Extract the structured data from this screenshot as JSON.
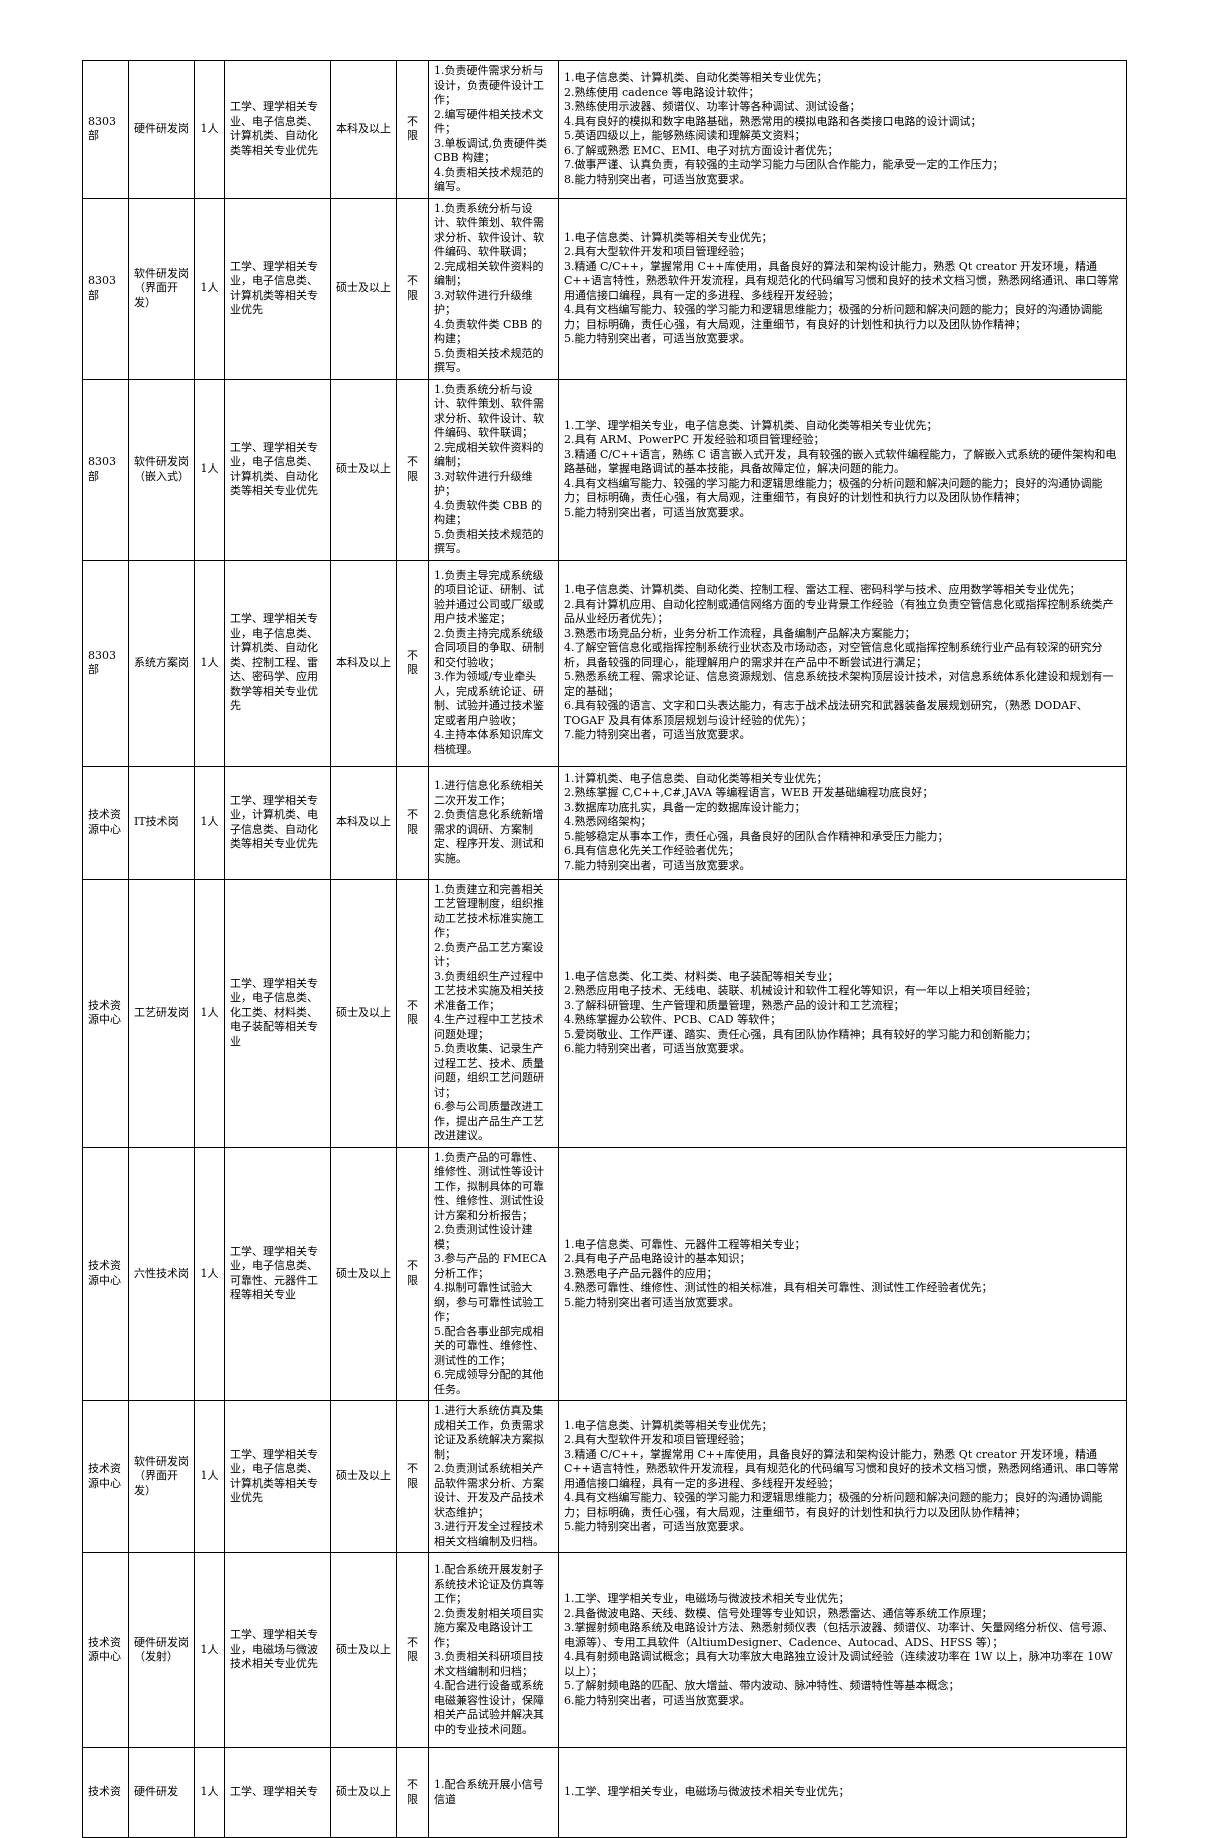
{
  "document": {
    "kind": "recruitment-positions-table",
    "language": "zh-CN",
    "background_color": "#ffffff",
    "border_color": "#000000",
    "text_color": "#000000"
  },
  "table": {
    "rows": [
      {
        "department": "8303部",
        "position": "硬件研发岗",
        "headcount": "1人",
        "majors": "工学、理学相关专业、电子信息类、计算机类、自动化类等相关专业优先",
        "education": "本科及以上",
        "age_limit": "不限",
        "duties": [
          "1.负责硬件需求分析与设计，负责硬件设计工作；",
          "2.编写硬件相关技术文件；",
          "3.单板调试,负责硬件类 CBB 构建；",
          "4.负责相关技术规范的编写。"
        ],
        "requirements": [
          "1.电子信息类、计算机类、自动化类等相关专业优先；",
          "2.熟练使用 cadence 等电路设计软件；",
          "3.熟练使用示波器、频谱仪、功率计等各种调试、测试设备；",
          "4.具有良好的模拟和数字电路基础，熟悉常用的模拟电路和各类接口电路的设计调试；",
          "5.英语四级以上，能够熟练阅读和理解英文资料；",
          "6.了解或熟悉 EMC、EMI、电子对抗方面设计者优先；",
          "7.做事严谨、认真负责，有较强的主动学习能力与团队合作能力，能承受一定的工作压力；",
          "8.能力特别突出者，可适当放宽要求。"
        ]
      },
      {
        "department": "8303部",
        "position": "软件研发岗（界面开发）",
        "headcount": "1人",
        "majors": "工学、理学相关专业，电子信息类、计算机类等相关专业优先",
        "education": "硕士及以上",
        "age_limit": "不限",
        "duties": [
          "1.负责系统分析与设计、软件策划、软件需求分析、软件设计、软件编码、软件联调；",
          "2.完成相关软件资料的编制；",
          "3.对软件进行升级维护；",
          "4.负责软件类 CBB 的构建；",
          "5.负责相关技术规范的撰写。"
        ],
        "requirements": [
          "1.电子信息类、计算机类等相关专业优先；",
          "2.具有大型软件开发和项目管理经验；",
          "3.精通 C/C++，掌握常用 C++库使用，具备良好的算法和架构设计能力，熟悉 Qt creator 开发环境，精通 C++语言特性，熟悉软件开发流程，具有规范化的代码编写习惯和良好的技术文档习惯，熟悉网络通讯、串口等常用通信接口编程，具有一定的多进程、多线程开发经验；",
          "4.具有文档编写能力、较强的学习能力和逻辑思维能力；极强的分析问题和解决问题的能力；良好的沟通协调能力；目标明确，责任心强，有大局观，注重细节，有良好的计划性和执行力以及团队协作精神；",
          "5.能力特别突出者，可适当放宽要求。"
        ]
      },
      {
        "department": "8303部",
        "position": "软件研发岗（嵌入式）",
        "headcount": "1人",
        "majors": "工学、理学相关专业，电子信息类、计算机类、自动化类等相关专业优先",
        "education": "硕士及以上",
        "age_limit": "不限",
        "duties": [
          "1.负责系统分析与设计、软件策划、软件需求分析、软件设计、软件编码、软件联调；",
          "2.完成相关软件资料的编制；",
          "3.对软件进行升级维护；",
          "4.负责软件类 CBB 的构建；",
          "5.负责相关技术规范的撰写。"
        ],
        "requirements": [
          "1.工学、理学相关专业，电子信息类、计算机类、自动化类等相关专业优先；",
          "2.具有 ARM、PowerPC 开发经验和项目管理经验；",
          "3.精通 C/C++语言，熟练 C 语言嵌入式开发，具有较强的嵌入式软件编程能力，了解嵌入式系统的硬件架构和电路基础，掌握电路调试的基本技能，具备故障定位，解决问题的能力。",
          "4.具有文档编写能力、较强的学习能力和逻辑思维能力；极强的分析问题和解决问题的能力；良好的沟通协调能力；目标明确，责任心强，有大局观，注重细节，有良好的计划性和执行力以及团队协作精神；",
          "5.能力特别突出者，可适当放宽要求。"
        ]
      },
      {
        "department": "8303部",
        "position": "系统方案岗",
        "headcount": "1人",
        "majors": "工学、理学相关专业，电子信息类、计算机类、自动化类、控制工程、雷达、密码学、应用数学等相关专业优先",
        "education": "本科及以上",
        "age_limit": "不限",
        "duties": [
          "1.负责主导完成系统级的项目论证、研制、试验并通过公司或厂级或用户技术鉴定；",
          "2.负责主持完成系统级合同项目的争取、研制和交付验收；",
          "3.作为领域/专业牵头人，完成系统论证、研制、试验并通过技术鉴定或者用户验收；",
          "4.主持本体系知识库文档梳理。"
        ],
        "requirements": [
          "1.电子信息类、计算机类、自动化类、控制工程、雷达工程、密码科学与技术、应用数学等相关专业优先；",
          "2.具有计算机应用、自动化控制或通信网络方面的专业背景工作经验（有独立负责空管信息化或指挥控制系统类产品从业经历者优先）；",
          "3.熟悉市场竞品分析，业务分析工作流程，具备编制产品解决方案能力；",
          "4.了解空管信息化或指挥控制系统行业状态及市场动态，对空管信息化或指挥控制系统行业产品有较深的研究分析，具备较强的同理心，能理解用户的需求并在产品中不断尝试进行满足；",
          "5.熟悉系统工程、需求论证、信息资源规划、信息系统技术架构顶层设计技术，对信息系统体系化建设和规划有一定的基础；",
          "6.具有较强的语言、文字和口头表达能力，有志于战术战法研究和武器装备发展规划研究，（熟悉 DODAF、TOGAF 及具有体系顶层规划与设计经验的优先）；",
          "7.能力特别突出者，可适当放宽要求。"
        ]
      },
      {
        "department": "技术资源中心",
        "position": "IT技术岗",
        "headcount": "1人",
        "majors": "工学、理学相关专业，计算机类、电子信息类、自动化类等相关专业优先",
        "education": "本科及以上",
        "age_limit": "不限",
        "duties": [
          "1.进行信息化系统相关二次开发工作；",
          "2.负责信息化系统新增需求的调研、方案制定、程序开发、测试和实施。"
        ],
        "requirements": [
          "1.计算机类、电子信息类、自动化类等相关专业优先；",
          "2.熟练掌握 C,C++,C#,JAVA 等编程语言，WEB 开发基础编程功底良好；",
          "3.数据库功底扎实，具备一定的数据库设计能力；",
          "4.熟悉网络架构；",
          "5.能够稳定从事本工作，责任心强，具备良好的团队合作精神和承受压力能力；",
          "6.具有信息化先关工作经验者优先；",
          "7.能力特别突出者，可适当放宽要求。"
        ]
      },
      {
        "department": "技术资源中心",
        "position": "工艺研发岗",
        "headcount": "1人",
        "majors": "工学、理学相关专业，电子信息类、化工类、材料类、电子装配等相关专业",
        "education": "硕士及以上",
        "age_limit": "不限",
        "duties": [
          "1.负责建立和完善相关工艺管理制度，组织推动工艺技术标准实施工作；",
          "2.负责产品工艺方案设计；",
          "3.负责组织生产过程中工艺技术实施及相关技术准备工作；",
          "4.生产过程中工艺技术问题处理；",
          "5.负责收集、记录生产过程工艺、技术、质量问题，组织工艺问题研讨；",
          "6.参与公司质量改进工作，提出产品生产工艺改进建议。"
        ],
        "requirements": [
          "1.电子信息类、化工类、材料类、电子装配等相关专业；",
          "2.熟悉应用电子技术、无线电、装联、机械设计和软件工程化等知识，有一年以上相关项目经验；",
          "3.了解科研管理、生产管理和质量管理，熟悉产品的设计和工艺流程；",
          "4.熟练掌握办公软件、PCB、CAD 等软件；",
          "5.爱岗敬业、工作严谨、踏实、责任心强，具有团队协作精神；具有较好的学习能力和创新能力；",
          "6.能力特别突出者，可适当放宽要求。"
        ]
      },
      {
        "department": "技术资源中心",
        "position": "六性技术岗",
        "headcount": "1人",
        "majors": "工学、理学相关专业，电子信息类、可靠性、元器件工程等相关专业",
        "education": "硕士及以上",
        "age_limit": "不限",
        "duties": [
          "1.负责产品的可靠性、维修性、测试性等设计工作，拟制具体的可靠性、维修性、测试性设计方案和分析报告；",
          "2.负责测试性设计建模；",
          "3.参与产品的 FMECA 分析工作；",
          "4.拟制可靠性试验大纲，参与可靠性试验工作；",
          "5.配合各事业部完成相关的可靠性、维修性、测试性的工作；",
          "6.完成领导分配的其他任务。"
        ],
        "requirements": [
          "1.电子信息类、可靠性、元器件工程等相关专业；",
          "2.具有电子产品电路设计的基本知识；",
          "3.熟悉电子产品元器件的应用；",
          "4.熟悉可靠性、维修性、测试性的相关标准，具有相关可靠性、测试性工作经验者优先；",
          "5.能力特别突出者可适当放宽要求。"
        ]
      },
      {
        "department": "技术资源中心",
        "position": "软件研发岗（界面开发）",
        "headcount": "1人",
        "majors": "工学、理学相关专业，电子信息类、计算机类等相关专业优先",
        "education": "硕士及以上",
        "age_limit": "不限",
        "duties": [
          "1.进行大系统仿真及集成相关工作，负责需求论证及系统解决方案拟制；",
          "2.负责测试系统相关产品软件需求分析、方案设计、开发及产品技术状态维护；",
          "3.进行开发全过程技术相关文档编制及归档。"
        ],
        "requirements": [
          "1.电子信息类、计算机类等相关专业优先；",
          "2.具有大型软件开发和项目管理经验；",
          "3.精通 C/C++，掌握常用 C++库使用，具备良好的算法和架构设计能力，熟悉 Qt creator 开发环境，精通 C++语言特性，熟悉软件开发流程，具有规范化的代码编写习惯和良好的技术文档习惯，熟悉网络通讯、串口等常用通信接口编程，具有一定的多进程、多线程开发经验；",
          "4.具有文档编写能力、较强的学习能力和逻辑思维能力；极强的分析问题和解决问题的能力；良好的沟通协调能力；目标明确，责任心强，有大局观，注重细节，有良好的计划性和执行力以及团队协作精神；",
          "5.能力特别突出者，可适当放宽要求。"
        ]
      },
      {
        "department": "技术资源中心",
        "position": "硬件研发岗（发射）",
        "headcount": "1人",
        "majors": "工学、理学相关专业，电磁场与微波技术相关专业优先",
        "education": "硕士及以上",
        "age_limit": "不限",
        "duties": [
          "1.配合系统开展发射子系统技术论证及仿真等工作；",
          "2.负责发射相关项目实施方案及电路设计工作；",
          "3.负责相关科研项目技术文档编制和归档；",
          "4.配合进行设备或系统电磁兼容性设计，保障相关产品试验并解决其中的专业技术问题。"
        ],
        "requirements": [
          "1.工学、理学相关专业，电磁场与微波技术相关专业优先；",
          "2.具备微波电路、天线、数模、信号处理等专业知识，熟悉雷达、通信等系统工作原理；",
          "3.掌握射频电路系统及电路设计方法、熟悉射频仪表（包括示波器、频谱仪、功率计、矢量网络分析仪、信号源、电源等）、专用工具软件（AltiumDesigner、Cadence、Autocad、ADS、HFSS 等）；",
          "4.具有射频电路调试概念；具有大功率放大电路独立设计及调试经验（连续波功率在 1W 以上，脉冲功率在 10W 以上）；",
          "5.了解射频电路的匹配、放大增益、带内波动、脉冲特性、频谱特性等基本概念；",
          "6.能力特别突出者，可适当放宽要求。"
        ]
      },
      {
        "department": "技术资",
        "position": "硬件研发",
        "headcount": "1人",
        "majors": "工学、理学相关专",
        "education": "硕士及以上",
        "age_limit": "不限",
        "duties": [
          "1.配合系统开展小信号信道"
        ],
        "requirements": [
          "1.工学、理学相关专业，电磁场与微波技术相关专业优先；"
        ]
      }
    ]
  }
}
